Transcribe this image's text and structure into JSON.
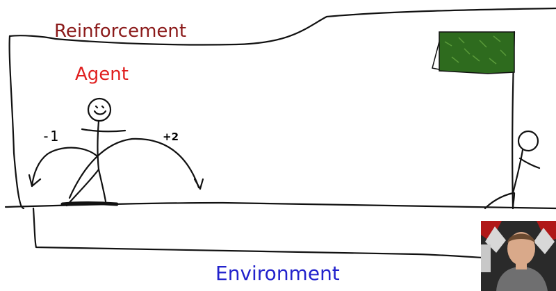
{
  "labels": {
    "title": "Reinforcement",
    "agent": "Agent",
    "environment": "Environment",
    "reward_negative": "-1",
    "reward_positive": "+2"
  },
  "colors": {
    "title": "#8b1a1a",
    "agent": "#e02020",
    "environment": "#2222cc",
    "ink": "#111111",
    "flag": "#2e6b1e"
  },
  "icons": {
    "agent_figure": "stick-figure-smiley",
    "goal_figure": "stick-figure",
    "goal_flag": "green-flag",
    "presenter": "webcam-presenter"
  }
}
